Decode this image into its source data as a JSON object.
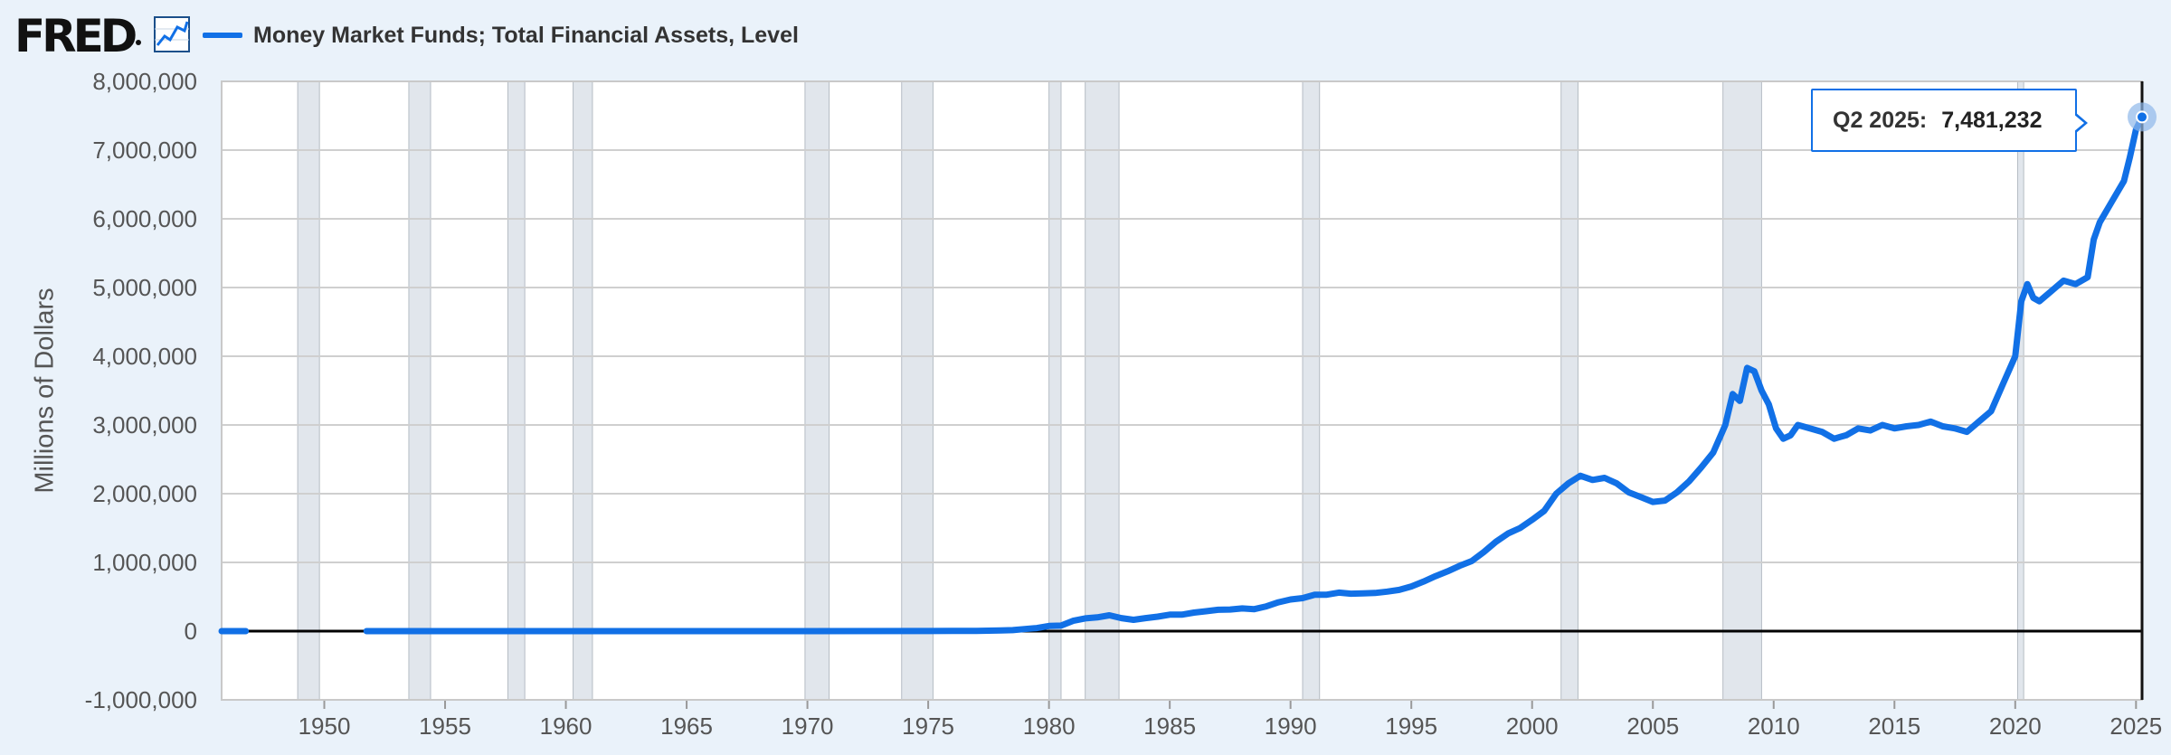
{
  "header": {
    "logo": "FRED",
    "legend_label": "Money Market Funds; Total Financial Assets, Level"
  },
  "colors": {
    "series": "#1170e6",
    "recession": "#e1e6ec",
    "background": "#eaf2fa",
    "plot": "#ffffff",
    "grid": "#cfcfcf"
  },
  "tooltip": {
    "date": "Q2 2025:",
    "value": "7,481,232"
  },
  "chart_data": {
    "type": "line",
    "title": "",
    "ylabel": "Millions of Dollars",
    "xlabel": "",
    "xlim": [
      1945.75,
      2025.25
    ],
    "ylim": [
      -1000000,
      8000000
    ],
    "grid": true,
    "legend_position": "top-left",
    "x_ticks": [
      1950,
      1955,
      1960,
      1965,
      1970,
      1975,
      1980,
      1985,
      1990,
      1995,
      2000,
      2005,
      2010,
      2015,
      2020,
      2025
    ],
    "y_ticks": [
      -1000000,
      0,
      1000000,
      2000000,
      3000000,
      4000000,
      5000000,
      6000000,
      7000000,
      8000000
    ],
    "y_tick_labels": [
      "-1,000,000",
      "0",
      "1,000,000",
      "2,000,000",
      "3,000,000",
      "4,000,000",
      "5,000,000",
      "6,000,000",
      "7,000,000",
      "8,000,000"
    ],
    "recessions": [
      [
        1948.9,
        1949.8
      ],
      [
        1953.5,
        1954.4
      ],
      [
        1957.6,
        1958.3
      ],
      [
        1960.3,
        1961.1
      ],
      [
        1969.9,
        1970.9
      ],
      [
        1973.9,
        1975.2
      ],
      [
        1980.0,
        1980.5
      ],
      [
        1981.5,
        1982.9
      ],
      [
        1990.5,
        1991.2
      ],
      [
        2001.2,
        2001.9
      ],
      [
        2007.9,
        2009.5
      ],
      [
        2020.1,
        2020.35
      ]
    ],
    "series": [
      {
        "name": "Money Market Funds; Total Financial Assets, Level",
        "segments": [
          [
            [
              1945.75,
              0
            ],
            [
              1946.75,
              0
            ]
          ],
          [
            [
              1951.75,
              0
            ],
            [
              1960,
              0
            ],
            [
              1970,
              0
            ],
            [
              1975,
              1500
            ],
            [
              1976,
              3000
            ],
            [
              1977,
              3500
            ],
            [
              1978,
              10000
            ],
            [
              1978.5,
              15000
            ],
            [
              1979,
              30000
            ],
            [
              1979.5,
              45000
            ],
            [
              1980,
              75000
            ],
            [
              1980.5,
              80000
            ],
            [
              1981,
              150000
            ],
            [
              1981.5,
              185000
            ],
            [
              1982,
              200000
            ],
            [
              1982.5,
              230000
            ],
            [
              1983,
              190000
            ],
            [
              1983.5,
              165000
            ],
            [
              1984,
              190000
            ],
            [
              1984.5,
              210000
            ],
            [
              1985,
              240000
            ],
            [
              1985.5,
              240000
            ],
            [
              1986,
              270000
            ],
            [
              1986.5,
              290000
            ],
            [
              1987,
              310000
            ],
            [
              1987.5,
              315000
            ],
            [
              1988,
              330000
            ],
            [
              1988.5,
              320000
            ],
            [
              1989,
              360000
            ],
            [
              1989.5,
              420000
            ],
            [
              1990,
              460000
            ],
            [
              1990.5,
              480000
            ],
            [
              1991,
              530000
            ],
            [
              1991.5,
              530000
            ],
            [
              1992,
              560000
            ],
            [
              1992.5,
              545000
            ],
            [
              1993,
              550000
            ],
            [
              1993.5,
              555000
            ],
            [
              1994,
              575000
            ],
            [
              1994.5,
              600000
            ],
            [
              1995,
              650000
            ],
            [
              1995.5,
              720000
            ],
            [
              1996,
              800000
            ],
            [
              1996.5,
              870000
            ],
            [
              1997,
              950000
            ],
            [
              1997.5,
              1020000
            ],
            [
              1998,
              1150000
            ],
            [
              1998.5,
              1300000
            ],
            [
              1999,
              1420000
            ],
            [
              1999.5,
              1500000
            ],
            [
              2000,
              1620000
            ],
            [
              2000.5,
              1750000
            ],
            [
              2001,
              2000000
            ],
            [
              2001.5,
              2150000
            ],
            [
              2002,
              2260000
            ],
            [
              2002.5,
              2200000
            ],
            [
              2003,
              2230000
            ],
            [
              2003.5,
              2150000
            ],
            [
              2004,
              2020000
            ],
            [
              2004.5,
              1950000
            ],
            [
              2005,
              1880000
            ],
            [
              2005.5,
              1900000
            ],
            [
              2006,
              2020000
            ],
            [
              2006.5,
              2180000
            ],
            [
              2007,
              2380000
            ],
            [
              2007.5,
              2600000
            ],
            [
              2008,
              3000000
            ],
            [
              2008.3,
              3450000
            ],
            [
              2008.6,
              3350000
            ],
            [
              2008.9,
              3830000
            ],
            [
              2009.2,
              3780000
            ],
            [
              2009.5,
              3500000
            ],
            [
              2009.8,
              3300000
            ],
            [
              2010.1,
              2950000
            ],
            [
              2010.4,
              2800000
            ],
            [
              2010.7,
              2850000
            ],
            [
              2011,
              3000000
            ],
            [
              2011.5,
              2950000
            ],
            [
              2012,
              2900000
            ],
            [
              2012.5,
              2800000
            ],
            [
              2013,
              2850000
            ],
            [
              2013.5,
              2950000
            ],
            [
              2014,
              2920000
            ],
            [
              2014.5,
              3000000
            ],
            [
              2015,
              2950000
            ],
            [
              2015.5,
              2980000
            ],
            [
              2016,
              3000000
            ],
            [
              2016.5,
              3050000
            ],
            [
              2017,
              2980000
            ],
            [
              2017.5,
              2950000
            ],
            [
              2018,
              2900000
            ],
            [
              2018.5,
              3050000
            ],
            [
              2019,
              3200000
            ],
            [
              2019.5,
              3600000
            ],
            [
              2020,
              4000000
            ],
            [
              2020.25,
              4800000
            ],
            [
              2020.5,
              5050000
            ],
            [
              2020.75,
              4850000
            ],
            [
              2021,
              4800000
            ],
            [
              2021.5,
              4950000
            ],
            [
              2022,
              5100000
            ],
            [
              2022.5,
              5050000
            ],
            [
              2023,
              5150000
            ],
            [
              2023.25,
              5700000
            ],
            [
              2023.5,
              5950000
            ],
            [
              2024,
              6250000
            ],
            [
              2024.5,
              6550000
            ],
            [
              2024.75,
              6900000
            ],
            [
              2025,
              7300000
            ],
            [
              2025.25,
              7481232
            ]
          ]
        ]
      }
    ]
  }
}
